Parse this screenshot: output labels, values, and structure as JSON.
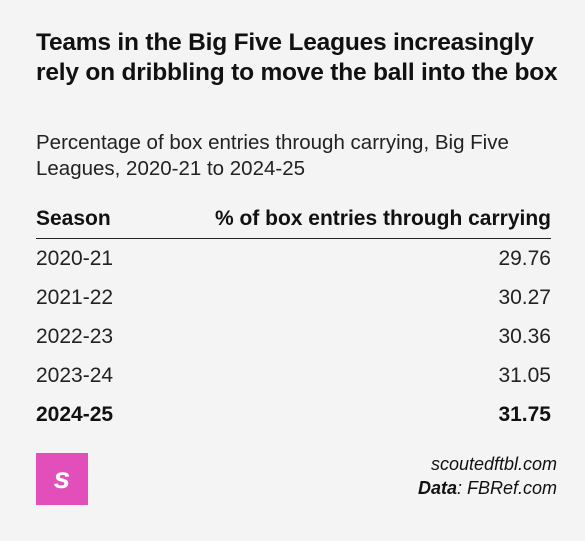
{
  "title": "Teams in the Big Five Leagues increasingly rely on dribbling to move the ball into the box",
  "subtitle": "Percentage of box entries through carrying, Big Five Leagues, 2020-21 to 2024-25",
  "table": {
    "headers": [
      "Season",
      "% of box entries through carrying"
    ],
    "rows": [
      {
        "season": "2020-21",
        "value": "29.76"
      },
      {
        "season": "2021-22",
        "value": "30.27"
      },
      {
        "season": "2022-23",
        "value": "30.36"
      },
      {
        "season": "2023-24",
        "value": "31.05"
      },
      {
        "season": "2024-25",
        "value": "31.75"
      }
    ],
    "highlighted_row": "2024-25"
  },
  "logo": {
    "glyph": "s",
    "color": "#e24fbb",
    "icon": "scouted-logo-icon"
  },
  "source": {
    "site": "scoutedftbl.com",
    "data_label": "Data",
    "data_source": ": FBRef.com"
  },
  "colors": {
    "background": "#f4f4f4",
    "text": "#111111",
    "accent": "#e24fbb"
  }
}
